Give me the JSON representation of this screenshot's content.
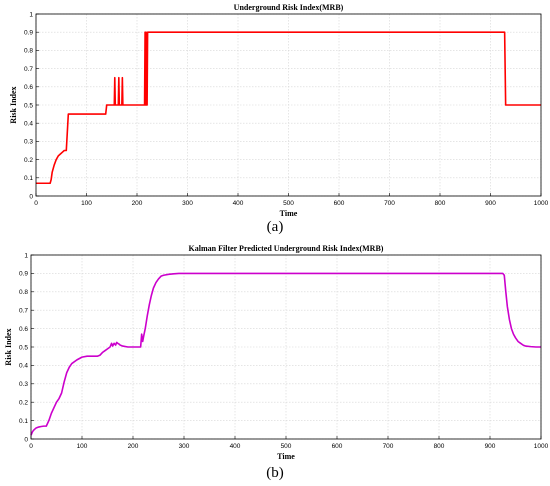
{
  "chart_data": [
    {
      "type": "line",
      "title": "Underground Risk Index(MRB)",
      "xlabel": "Time",
      "ylabel": "Risk Index",
      "xlim": [
        0,
        1000
      ],
      "ylim": [
        0,
        1
      ],
      "xticks": [
        "0",
        "100",
        "200",
        "300",
        "400",
        "500",
        "600",
        "700",
        "800",
        "900",
        "1000"
      ],
      "yticks": [
        "0",
        "0.1",
        "0.2",
        "0.3",
        "0.4",
        "0.5",
        "0.6",
        "0.7",
        "0.8",
        "0.9",
        "1"
      ],
      "grid": true,
      "caption": "(a)",
      "series": [
        {
          "color": "#ff0000",
          "x": [
            0,
            28,
            30,
            32,
            36,
            40,
            44,
            48,
            52,
            56,
            60,
            62,
            64,
            66,
            138,
            140,
            155,
            156,
            157,
            158,
            159,
            163,
            164,
            165,
            166,
            167,
            170,
            171,
            172,
            173,
            174,
            215,
            216,
            217,
            218,
            219,
            220,
            221,
            222,
            928,
            930,
            1000
          ],
          "y": [
            0.07,
            0.07,
            0.09,
            0.13,
            0.17,
            0.2,
            0.22,
            0.23,
            0.24,
            0.25,
            0.25,
            0.35,
            0.45,
            0.45,
            0.45,
            0.5,
            0.5,
            0.65,
            0.5,
            0.5,
            0.5,
            0.5,
            0.65,
            0.5,
            0.5,
            0.5,
            0.5,
            0.65,
            0.5,
            0.5,
            0.5,
            0.5,
            0.9,
            0.5,
            0.9,
            0.5,
            0.5,
            0.9,
            0.9,
            0.9,
            0.5,
            0.5
          ]
        }
      ]
    },
    {
      "type": "line",
      "title": "Kalman Filter Predicted Underground Risk Index(MRB)",
      "xlabel": "Time",
      "ylabel": "Risk Index",
      "xlim": [
        0,
        1000
      ],
      "ylim": [
        0,
        1
      ],
      "xticks": [
        "0",
        "100",
        "200",
        "300",
        "400",
        "500",
        "600",
        "700",
        "800",
        "900",
        "1000"
      ],
      "yticks": [
        "0",
        "0.1",
        "0.2",
        "0.3",
        "0.4",
        "0.5",
        "0.6",
        "0.7",
        "0.8",
        "0.9",
        "1"
      ],
      "grid": true,
      "caption": "(b)",
      "series": [
        {
          "color": "#cc00cc",
          "x": [
            0,
            3,
            6,
            10,
            15,
            20,
            25,
            30,
            35,
            40,
            45,
            50,
            55,
            60,
            65,
            70,
            75,
            80,
            90,
            100,
            110,
            120,
            130,
            135,
            140,
            145,
            150,
            155,
            158,
            160,
            163,
            166,
            168,
            170,
            173,
            175,
            180,
            190,
            200,
            210,
            215,
            217,
            219,
            221,
            224,
            228,
            232,
            236,
            240,
            245,
            250,
            255,
            260,
            270,
            280,
            290,
            300,
            400,
            500,
            600,
            700,
            800,
            900,
            925,
            928,
            931,
            934,
            938,
            942,
            946,
            950,
            955,
            960,
            965,
            970,
            980,
            990,
            1000
          ],
          "y": [
            0.02,
            0.04,
            0.05,
            0.06,
            0.065,
            0.068,
            0.07,
            0.07,
            0.1,
            0.14,
            0.17,
            0.2,
            0.22,
            0.25,
            0.31,
            0.36,
            0.39,
            0.41,
            0.43,
            0.445,
            0.45,
            0.45,
            0.45,
            0.455,
            0.47,
            0.48,
            0.49,
            0.5,
            0.52,
            0.505,
            0.52,
            0.51,
            0.525,
            0.52,
            0.515,
            0.51,
            0.505,
            0.5,
            0.5,
            0.5,
            0.5,
            0.57,
            0.53,
            0.56,
            0.6,
            0.67,
            0.73,
            0.78,
            0.82,
            0.85,
            0.87,
            0.885,
            0.89,
            0.895,
            0.898,
            0.9,
            0.9,
            0.9,
            0.9,
            0.9,
            0.9,
            0.9,
            0.9,
            0.9,
            0.89,
            0.8,
            0.72,
            0.65,
            0.6,
            0.57,
            0.55,
            0.53,
            0.52,
            0.51,
            0.505,
            0.502,
            0.5,
            0.5
          ]
        }
      ]
    }
  ]
}
